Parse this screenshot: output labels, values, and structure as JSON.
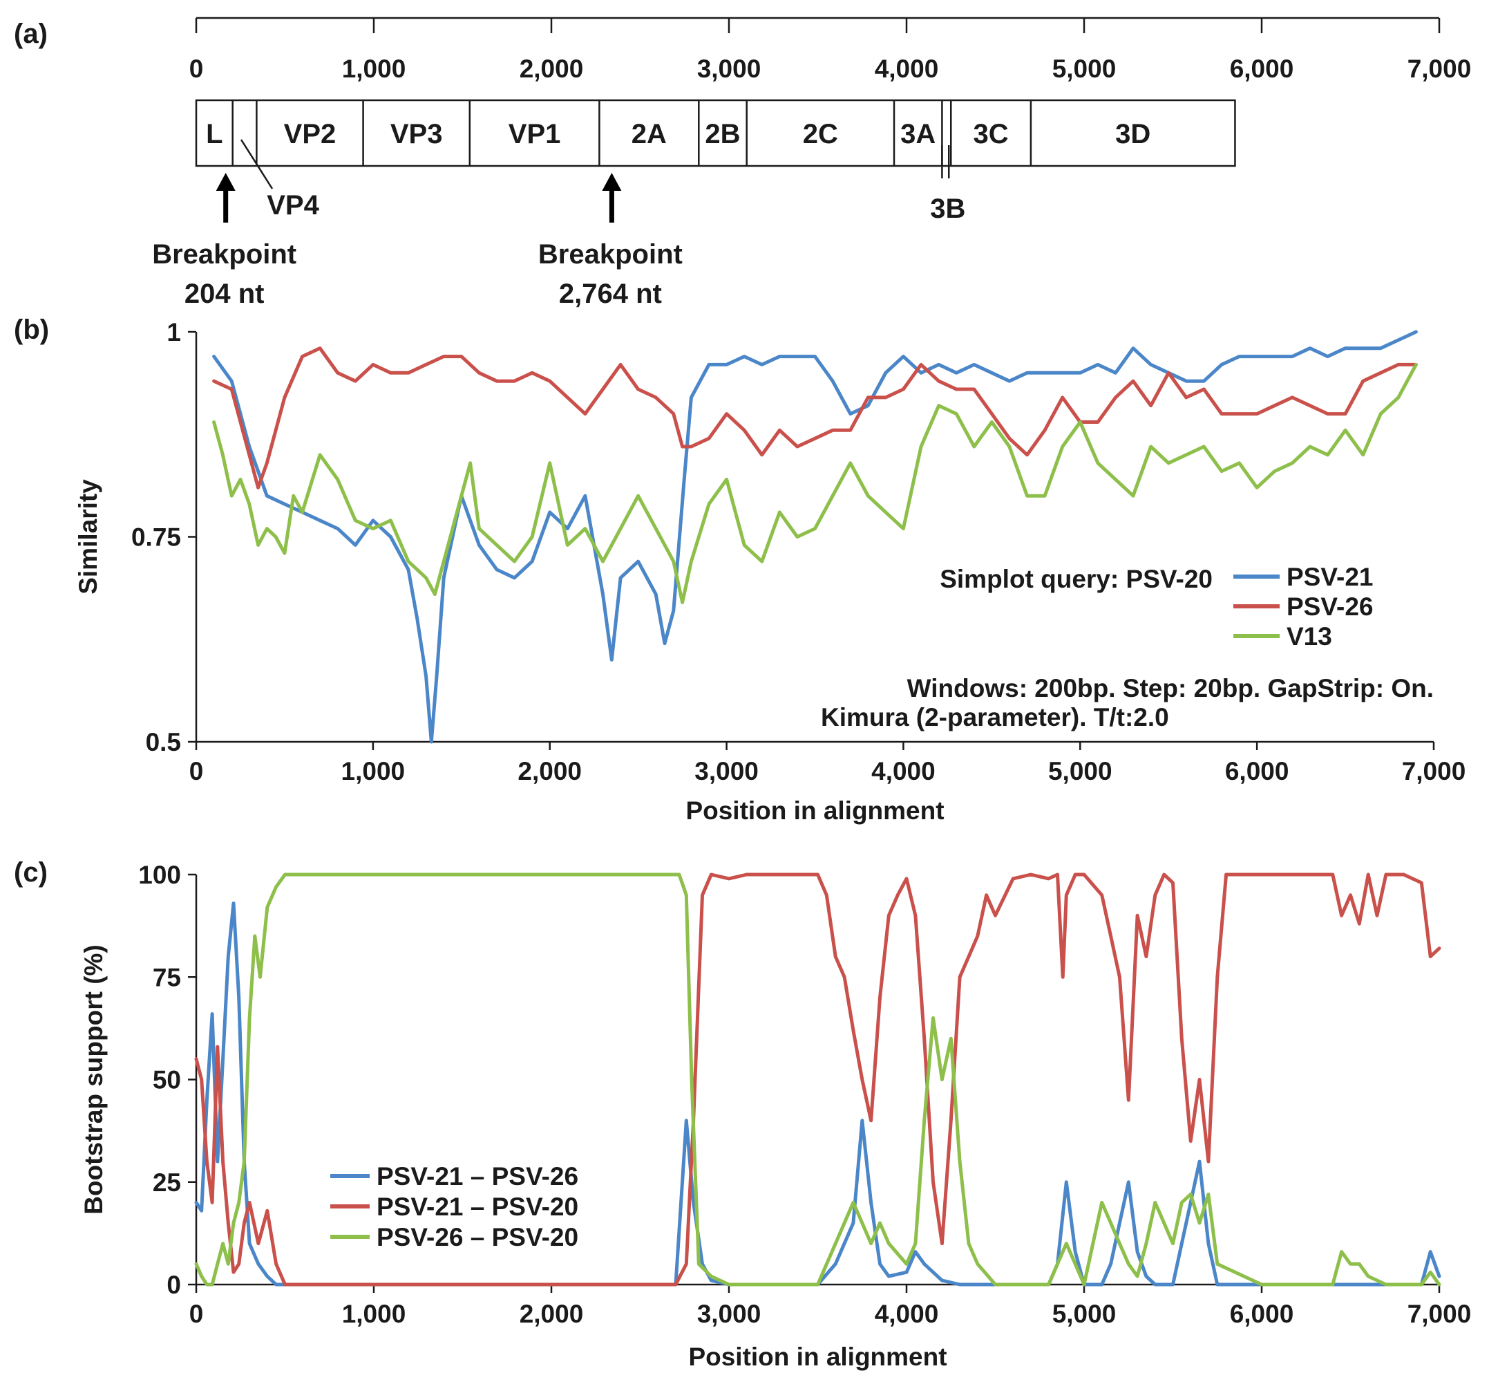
{
  "chart_data": [
    {
      "panel": "(a)",
      "type": "genome map",
      "xlim": [
        0,
        7000
      ],
      "ticks": [
        "0",
        "1,000",
        "2,000",
        "3,000",
        "4,000",
        "5,000",
        "6,000",
        "7,000"
      ],
      "tick_values": [
        0,
        1000,
        2000,
        3000,
        4000,
        5000,
        6000,
        7000
      ],
      "regions": [
        {
          "name": "L",
          "start": 0,
          "end": 205
        },
        {
          "name": "VP4",
          "start": 205,
          "end": 340
        },
        {
          "name": "VP2",
          "start": 340,
          "end": 940
        },
        {
          "name": "VP3",
          "start": 940,
          "end": 1540
        },
        {
          "name": "VP1",
          "start": 1540,
          "end": 2270
        },
        {
          "name": "2A",
          "start": 2270,
          "end": 2830
        },
        {
          "name": "2B",
          "start": 2830,
          "end": 3100
        },
        {
          "name": "2C",
          "start": 3100,
          "end": 3930
        },
        {
          "name": "3A",
          "start": 3930,
          "end": 4200
        },
        {
          "name": "3B",
          "start": 4200,
          "end": 4250
        },
        {
          "name": "3C",
          "start": 4250,
          "end": 4700
        },
        {
          "name": "3D",
          "start": 4700,
          "end": 5850
        }
      ],
      "breakpoints": [
        {
          "label": "Breakpoint",
          "position_text": "204 nt",
          "position": 204
        },
        {
          "label": "Breakpoint",
          "position_text": "2,764 nt",
          "position": 2764
        }
      ]
    },
    {
      "panel": "(b)",
      "type": "line",
      "xlabel": "Position in alignment",
      "ylabel": "Similarity",
      "xlim": [
        0,
        7000
      ],
      "ylim": [
        0.5,
        1
      ],
      "xticks": [
        "0",
        "1,000",
        "2,000",
        "3,000",
        "4,000",
        "5,000",
        "6,000",
        "7,000"
      ],
      "xtick_values": [
        0,
        1000,
        2000,
        3000,
        4000,
        5000,
        6000,
        7000
      ],
      "yticks": [
        "0.5",
        "0.75",
        "1"
      ],
      "ytick_values": [
        0.5,
        0.75,
        1
      ],
      "legend_title": "Simplot query: PSV-20",
      "annotation_lines": [
        "Windows: 200bp. Step: 20bp. GapStrip: On.",
        "Kimura (2-parameter). T/t:2.0"
      ],
      "series": [
        {
          "name": "PSV-21",
          "color": "#4a86c8",
          "x": [
            100,
            200,
            300,
            400,
            500,
            600,
            700,
            800,
            900,
            1000,
            1100,
            1200,
            1250,
            1300,
            1330,
            1360,
            1400,
            1500,
            1550,
            1600,
            1700,
            1800,
            1900,
            2000,
            2100,
            2200,
            2300,
            2350,
            2400,
            2500,
            2600,
            2650,
            2700,
            2760,
            2800,
            2900,
            3000,
            3100,
            3200,
            3300,
            3400,
            3500,
            3600,
            3700,
            3800,
            3900,
            4000,
            4100,
            4200,
            4300,
            4400,
            4500,
            4600,
            4700,
            4800,
            4900,
            5000,
            5100,
            5200,
            5300,
            5400,
            5500,
            5600,
            5700,
            5800,
            5900,
            6000,
            6100,
            6200,
            6300,
            6400,
            6500,
            6600,
            6700,
            6800,
            6900
          ],
          "values": [
            0.97,
            0.94,
            0.86,
            0.8,
            0.79,
            0.78,
            0.77,
            0.76,
            0.74,
            0.77,
            0.75,
            0.71,
            0.65,
            0.58,
            0.5,
            0.58,
            0.7,
            0.8,
            0.77,
            0.74,
            0.71,
            0.7,
            0.72,
            0.78,
            0.76,
            0.8,
            0.68,
            0.6,
            0.7,
            0.72,
            0.68,
            0.62,
            0.66,
            0.82,
            0.92,
            0.96,
            0.96,
            0.97,
            0.96,
            0.97,
            0.97,
            0.97,
            0.94,
            0.9,
            0.91,
            0.95,
            0.97,
            0.95,
            0.96,
            0.95,
            0.96,
            0.95,
            0.94,
            0.95,
            0.95,
            0.95,
            0.95,
            0.96,
            0.95,
            0.98,
            0.96,
            0.95,
            0.94,
            0.94,
            0.96,
            0.97,
            0.97,
            0.97,
            0.97,
            0.98,
            0.97,
            0.98,
            0.98,
            0.98,
            0.99,
            1.0
          ]
        },
        {
          "name": "PSV-26",
          "color": "#c9504b",
          "x": [
            100,
            200,
            300,
            350,
            400,
            500,
            600,
            700,
            800,
            900,
            1000,
            1100,
            1200,
            1300,
            1400,
            1500,
            1600,
            1700,
            1800,
            1900,
            2000,
            2100,
            2200,
            2300,
            2400,
            2500,
            2600,
            2700,
            2750,
            2800,
            2900,
            3000,
            3100,
            3200,
            3300,
            3400,
            3500,
            3600,
            3700,
            3800,
            3900,
            4000,
            4100,
            4200,
            4300,
            4400,
            4500,
            4600,
            4700,
            4800,
            4900,
            5000,
            5100,
            5200,
            5300,
            5400,
            5500,
            5600,
            5700,
            5800,
            5900,
            6000,
            6100,
            6200,
            6300,
            6400,
            6500,
            6600,
            6700,
            6800,
            6900
          ],
          "values": [
            0.94,
            0.93,
            0.85,
            0.81,
            0.84,
            0.92,
            0.97,
            0.98,
            0.95,
            0.94,
            0.96,
            0.95,
            0.95,
            0.96,
            0.97,
            0.97,
            0.95,
            0.94,
            0.94,
            0.95,
            0.94,
            0.92,
            0.9,
            0.93,
            0.96,
            0.93,
            0.92,
            0.9,
            0.86,
            0.86,
            0.87,
            0.9,
            0.88,
            0.85,
            0.88,
            0.86,
            0.87,
            0.88,
            0.88,
            0.92,
            0.92,
            0.93,
            0.96,
            0.94,
            0.93,
            0.93,
            0.9,
            0.87,
            0.85,
            0.88,
            0.92,
            0.89,
            0.89,
            0.92,
            0.94,
            0.91,
            0.95,
            0.92,
            0.93,
            0.9,
            0.9,
            0.9,
            0.91,
            0.92,
            0.91,
            0.9,
            0.9,
            0.94,
            0.95,
            0.96,
            0.96
          ]
        },
        {
          "name": "V13",
          "color": "#8dbf4a",
          "x": [
            100,
            150,
            200,
            250,
            300,
            350,
            400,
            450,
            500,
            550,
            600,
            700,
            800,
            900,
            1000,
            1100,
            1200,
            1300,
            1350,
            1400,
            1500,
            1550,
            1600,
            1700,
            1800,
            1900,
            2000,
            2100,
            2200,
            2300,
            2400,
            2500,
            2600,
            2700,
            2750,
            2800,
            2900,
            3000,
            3100,
            3200,
            3300,
            3400,
            3500,
            3600,
            3700,
            3800,
            3900,
            4000,
            4100,
            4200,
            4300,
            4400,
            4500,
            4600,
            4700,
            4800,
            4900,
            5000,
            5100,
            5200,
            5300,
            5400,
            5500,
            5600,
            5700,
            5800,
            5900,
            6000,
            6100,
            6200,
            6300,
            6400,
            6500,
            6600,
            6700,
            6800,
            6900
          ],
          "values": [
            0.89,
            0.85,
            0.8,
            0.82,
            0.79,
            0.74,
            0.76,
            0.75,
            0.73,
            0.8,
            0.78,
            0.85,
            0.82,
            0.77,
            0.76,
            0.77,
            0.72,
            0.7,
            0.68,
            0.72,
            0.8,
            0.84,
            0.76,
            0.74,
            0.72,
            0.75,
            0.84,
            0.74,
            0.76,
            0.72,
            0.76,
            0.8,
            0.76,
            0.72,
            0.67,
            0.72,
            0.79,
            0.82,
            0.74,
            0.72,
            0.78,
            0.75,
            0.76,
            0.8,
            0.84,
            0.8,
            0.78,
            0.76,
            0.86,
            0.91,
            0.9,
            0.86,
            0.89,
            0.86,
            0.8,
            0.8,
            0.86,
            0.89,
            0.84,
            0.82,
            0.8,
            0.86,
            0.84,
            0.85,
            0.86,
            0.83,
            0.84,
            0.81,
            0.83,
            0.84,
            0.86,
            0.85,
            0.88,
            0.85,
            0.9,
            0.92,
            0.96
          ]
        }
      ]
    },
    {
      "panel": "(c)",
      "type": "line",
      "xlabel": "Position in alignment",
      "ylabel": "Bootstrap support (%)",
      "xlim": [
        0,
        7000
      ],
      "ylim": [
        0,
        100
      ],
      "xticks": [
        "0",
        "1,000",
        "2,000",
        "3,000",
        "4,000",
        "5,000",
        "6,000",
        "7,000"
      ],
      "xtick_values": [
        0,
        1000,
        2000,
        3000,
        4000,
        5000,
        6000,
        7000
      ],
      "yticks": [
        "0",
        "25",
        "50",
        "75",
        "100"
      ],
      "ytick_values": [
        0,
        25,
        50,
        75,
        100
      ],
      "series": [
        {
          "name": "PSV-21 – PSV-26",
          "color": "#4a86c8",
          "x": [
            0,
            30,
            60,
            90,
            120,
            150,
            180,
            210,
            240,
            270,
            300,
            350,
            400,
            450,
            500,
            2700,
            2760,
            2800,
            2850,
            2900,
            3000,
            3500,
            3600,
            3700,
            3750,
            3800,
            3850,
            3900,
            4000,
            4050,
            4100,
            4150,
            4200,
            4300,
            4400,
            4800,
            4850,
            4900,
            4950,
            5000,
            5100,
            5150,
            5200,
            5250,
            5300,
            5350,
            5400,
            5500,
            5550,
            5600,
            5650,
            5700,
            5750,
            6900,
            6950,
            7000
          ],
          "values": [
            20,
            18,
            45,
            66,
            30,
            55,
            80,
            93,
            70,
            30,
            10,
            5,
            2,
            0,
            0,
            0,
            40,
            20,
            5,
            1,
            0,
            0,
            5,
            15,
            40,
            20,
            5,
            2,
            3,
            8,
            5,
            3,
            1,
            0,
            0,
            0,
            5,
            25,
            8,
            0,
            0,
            5,
            15,
            25,
            8,
            2,
            0,
            0,
            10,
            20,
            30,
            10,
            0,
            0,
            8,
            2
          ]
        },
        {
          "name": "PSV-21 – PSV-20",
          "color": "#c9504b",
          "x": [
            0,
            30,
            60,
            90,
            120,
            150,
            180,
            210,
            240,
            270,
            300,
            350,
            400,
            450,
            500,
            2700,
            2760,
            2800,
            2850,
            2900,
            3000,
            3100,
            3300,
            3400,
            3500,
            3550,
            3600,
            3650,
            3700,
            3750,
            3800,
            3850,
            3900,
            3950,
            4000,
            4050,
            4100,
            4150,
            4200,
            4250,
            4300,
            4350,
            4400,
            4450,
            4500,
            4600,
            4700,
            4800,
            4850,
            4880,
            4900,
            4950,
            5000,
            5100,
            5150,
            5200,
            5250,
            5300,
            5350,
            5400,
            5450,
            5500,
            5550,
            5600,
            5650,
            5700,
            5750,
            5800,
            6000,
            6400,
            6450,
            6500,
            6550,
            6600,
            6650,
            6700,
            6800,
            6900,
            6950,
            7000
          ],
          "values": [
            55,
            50,
            30,
            20,
            58,
            30,
            15,
            3,
            5,
            15,
            20,
            10,
            18,
            5,
            0,
            0,
            5,
            40,
            95,
            100,
            99,
            100,
            100,
            100,
            100,
            95,
            80,
            75,
            62,
            50,
            40,
            70,
            90,
            95,
            99,
            90,
            60,
            25,
            10,
            40,
            75,
            80,
            85,
            95,
            90,
            99,
            100,
            99,
            100,
            75,
            95,
            100,
            100,
            95,
            85,
            75,
            45,
            90,
            80,
            95,
            100,
            98,
            60,
            35,
            50,
            30,
            75,
            100,
            100,
            100,
            90,
            95,
            88,
            100,
            90,
            100,
            100,
            98,
            80,
            82
          ]
        },
        {
          "name": "PSV-26 – PSV-20",
          "color": "#8dbf4a",
          "x": [
            0,
            30,
            60,
            90,
            120,
            150,
            180,
            210,
            240,
            270,
            300,
            330,
            360,
            400,
            450,
            500,
            2720,
            2760,
            2790,
            2830,
            2900,
            3000,
            3500,
            3600,
            3700,
            3750,
            3800,
            3850,
            3900,
            4000,
            4050,
            4100,
            4150,
            4200,
            4250,
            4300,
            4350,
            4400,
            4500,
            4800,
            4850,
            4900,
            4950,
            5000,
            5050,
            5100,
            5150,
            5200,
            5250,
            5300,
            5350,
            5400,
            5450,
            5500,
            5550,
            5600,
            5650,
            5700,
            5750,
            6000,
            6400,
            6450,
            6500,
            6550,
            6600,
            6700,
            6800,
            6900,
            6950,
            7000
          ],
          "values": [
            5,
            2,
            0,
            0,
            5,
            10,
            5,
            15,
            20,
            30,
            65,
            85,
            75,
            92,
            97,
            100,
            100,
            95,
            50,
            5,
            2,
            0,
            0,
            10,
            20,
            15,
            10,
            15,
            10,
            5,
            10,
            40,
            65,
            50,
            60,
            30,
            10,
            5,
            0,
            0,
            5,
            10,
            5,
            0,
            10,
            20,
            15,
            10,
            5,
            2,
            10,
            20,
            15,
            10,
            20,
            22,
            15,
            22,
            5,
            0,
            0,
            8,
            5,
            5,
            2,
            0,
            0,
            0,
            3,
            0
          ]
        }
      ]
    }
  ]
}
